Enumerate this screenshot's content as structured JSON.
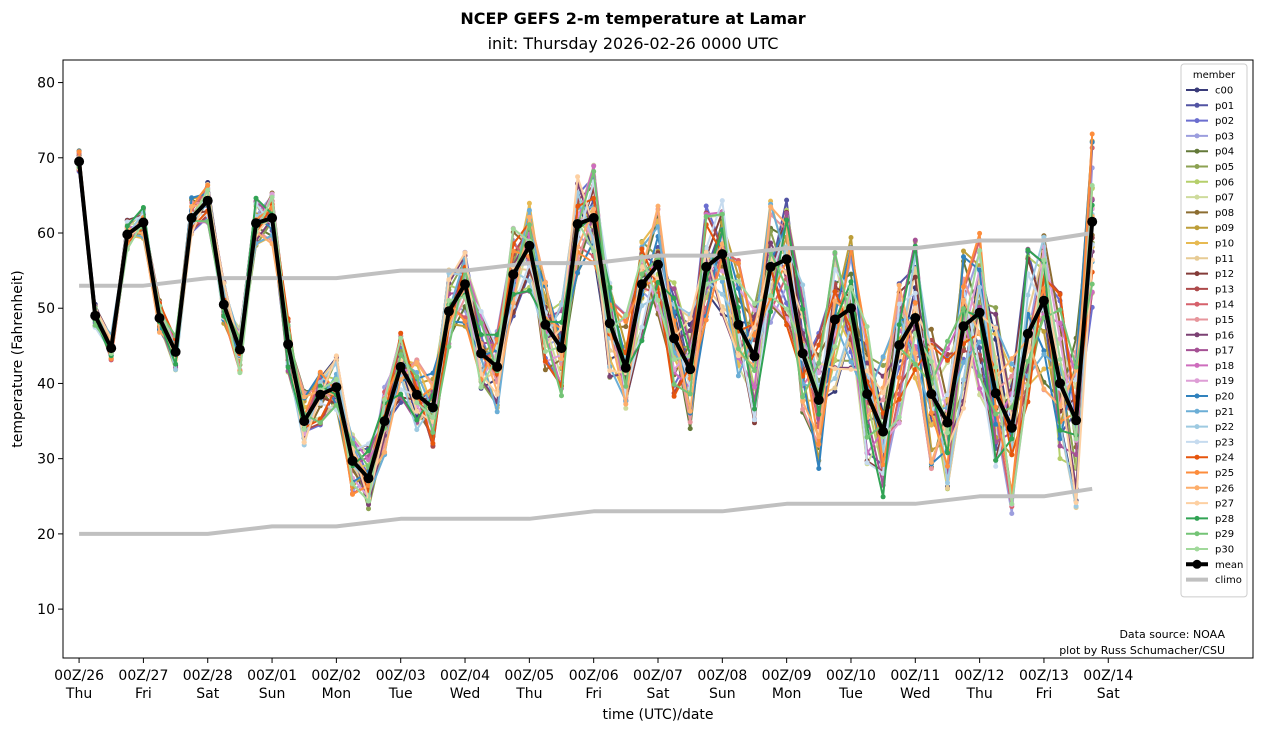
{
  "chart_data": {
    "type": "line",
    "title": "NCEP GEFS 2-m temperature at Lamar",
    "subtitle": "init: Thursday 2026-02-26 0000 UTC",
    "xlabel": "time (UTC)/date",
    "ylabel": "temperature (Fahrenheit)",
    "ylim": [
      3.5,
      83
    ],
    "yticks": [
      10,
      20,
      30,
      40,
      50,
      60,
      70,
      80
    ],
    "xlim": [
      -0.25,
      18.25
    ],
    "x_unit": "days since 00Z/26",
    "xticks": [
      {
        "label": "00Z/26",
        "day": "Thu"
      },
      {
        "label": "00Z/27",
        "day": "Fri"
      },
      {
        "label": "00Z/28",
        "day": "Sat"
      },
      {
        "label": "00Z/01",
        "day": "Sun"
      },
      {
        "label": "00Z/02",
        "day": "Mon"
      },
      {
        "label": "00Z/03",
        "day": "Tue"
      },
      {
        "label": "00Z/04",
        "day": "Wed"
      },
      {
        "label": "00Z/05",
        "day": "Thu"
      },
      {
        "label": "00Z/06",
        "day": "Fri"
      },
      {
        "label": "00Z/07",
        "day": "Sat"
      },
      {
        "label": "00Z/08",
        "day": "Sun"
      },
      {
        "label": "00Z/09",
        "day": "Mon"
      },
      {
        "label": "00Z/10",
        "day": "Tue"
      },
      {
        "label": "00Z/11",
        "day": "Wed"
      },
      {
        "label": "00Z/12",
        "day": "Thu"
      },
      {
        "label": "00Z/13",
        "day": "Fri"
      },
      {
        "label": "00Z/14",
        "day": "Sat"
      }
    ],
    "legend_title": "member",
    "legend_position": "right",
    "source_note": [
      "Data source: NOAA",
      "plot by Russ Schumacher/CSU"
    ],
    "member_series": [
      {
        "name": "c00",
        "color": "#393b79"
      },
      {
        "name": "p01",
        "color": "#5254a3"
      },
      {
        "name": "p02",
        "color": "#6b6ecf"
      },
      {
        "name": "p03",
        "color": "#9c9ede"
      },
      {
        "name": "p04",
        "color": "#637939"
      },
      {
        "name": "p05",
        "color": "#8ca252"
      },
      {
        "name": "p06",
        "color": "#b5cf6b"
      },
      {
        "name": "p07",
        "color": "#cedb9c"
      },
      {
        "name": "p08",
        "color": "#8c6d31"
      },
      {
        "name": "p09",
        "color": "#bd9e39"
      },
      {
        "name": "p10",
        "color": "#e7ba52"
      },
      {
        "name": "p11",
        "color": "#e7cb94"
      },
      {
        "name": "p12",
        "color": "#843c39"
      },
      {
        "name": "p13",
        "color": "#ad494a"
      },
      {
        "name": "p14",
        "color": "#d6616b"
      },
      {
        "name": "p15",
        "color": "#e7969c"
      },
      {
        "name": "p16",
        "color": "#7b4173"
      },
      {
        "name": "p17",
        "color": "#a55194"
      },
      {
        "name": "p18",
        "color": "#ce6dbd"
      },
      {
        "name": "p19",
        "color": "#de9ed6"
      },
      {
        "name": "p20",
        "color": "#3182bd"
      },
      {
        "name": "p21",
        "color": "#6baed6"
      },
      {
        "name": "p22",
        "color": "#9ecae1"
      },
      {
        "name": "p23",
        "color": "#c6dbef"
      },
      {
        "name": "p24",
        "color": "#e6550d"
      },
      {
        "name": "p25",
        "color": "#fd8d3c"
      },
      {
        "name": "p26",
        "color": "#fdae6b"
      },
      {
        "name": "p27",
        "color": "#fdd0a2"
      },
      {
        "name": "p28",
        "color": "#31a354"
      },
      {
        "name": "p29",
        "color": "#74c476"
      },
      {
        "name": "p30",
        "color": "#a1d99b"
      }
    ],
    "mean": {
      "name": "mean",
      "color": "#000000",
      "x": [
        0,
        0.25,
        0.5,
        0.75,
        1,
        1.25,
        1.5,
        1.75,
        2,
        2.25,
        2.5,
        2.75,
        3,
        3.25,
        3.5,
        3.75,
        4,
        4.25,
        4.5,
        4.75,
        5,
        5.25,
        5.5,
        5.75,
        6,
        6.25,
        6.5,
        6.75,
        7,
        7.25,
        7.5,
        7.75,
        8,
        8.25,
        8.5,
        8.75,
        9,
        9.25,
        9.5,
        9.75,
        10,
        10.25,
        10.5,
        10.75,
        11,
        11.25,
        11.5,
        11.75,
        12,
        12.25,
        12.5,
        12.75,
        13,
        13.25,
        13.5,
        13.75,
        14,
        14.25,
        14.5,
        14.75,
        15,
        15.25,
        15.5,
        15.75
      ],
      "values": [
        69.5,
        49,
        44.7,
        59.8,
        61.4,
        48.7,
        44.2,
        62,
        64.3,
        50.5,
        44.5,
        61.3,
        62,
        45.2,
        35,
        38.5,
        39.5,
        29.7,
        27.4,
        35,
        42.2,
        38.5,
        36.8,
        49.6,
        53.2,
        44,
        42.2,
        54.5,
        58.3,
        47.8,
        44.7,
        61.2,
        62,
        48,
        42.1,
        53.2,
        55.8,
        46,
        41.9,
        55.5,
        57.2,
        47.8,
        43.6,
        55.5,
        56.5,
        44,
        37.8,
        48.5,
        50,
        38.6,
        33.6,
        45.1,
        48.7,
        38.6,
        34.8,
        47.6,
        49.4,
        38.7,
        34.1,
        46.6,
        51,
        40,
        35.1,
        61.5
      ]
    },
    "climo": {
      "name": "climo",
      "color": "#c0c0c0",
      "upper": {
        "x": [
          0,
          1,
          2,
          3,
          4,
          5,
          6,
          7,
          8,
          9,
          10,
          11,
          12,
          13,
          14,
          15,
          15.75
        ],
        "values": [
          53,
          53,
          54,
          54,
          54,
          55,
          55,
          56,
          56,
          57,
          57,
          58,
          58,
          58,
          59,
          59,
          60
        ]
      },
      "lower": {
        "x": [
          0,
          1,
          2,
          3,
          4,
          5,
          6,
          7,
          8,
          9,
          10,
          11,
          12,
          13,
          14,
          15,
          15.75
        ],
        "values": [
          20,
          20,
          20,
          21,
          21,
          22,
          22,
          22,
          23,
          23,
          23,
          24,
          24,
          24,
          25,
          25,
          26
        ]
      }
    }
  }
}
